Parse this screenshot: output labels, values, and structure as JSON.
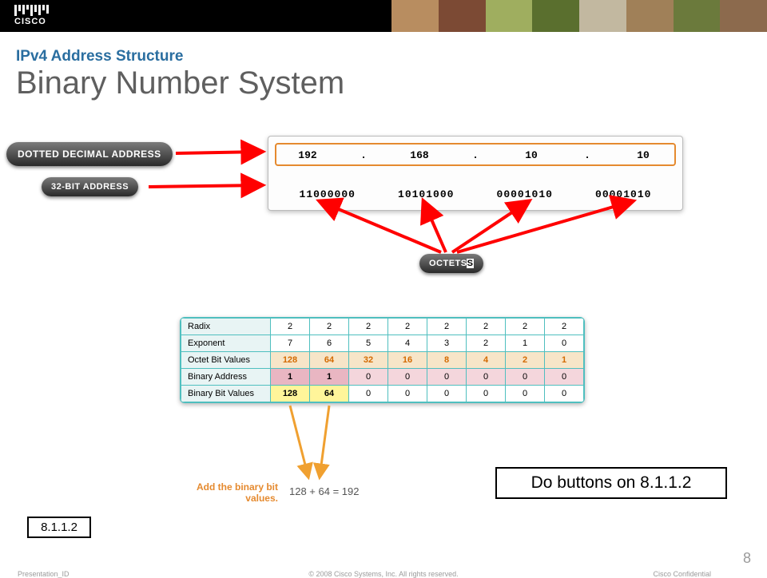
{
  "brand": "CISCO",
  "header": {
    "kicker": "IPv4 Address Structure",
    "title": "Binary Number System",
    "kicker_color": "#2a6ea0",
    "title_color": "#5f5f5f"
  },
  "pills": {
    "dotted": "DOTTED DECIMAL ADDRESS",
    "bit32": "32-BIT ADDRESS",
    "octets": "OCTETS"
  },
  "address": {
    "decimal": [
      "192",
      "168",
      "10",
      "10"
    ],
    "binary": [
      "11000000",
      "10101000",
      "00001010",
      "00001010"
    ],
    "box_border": "#e58a2f"
  },
  "table": {
    "row_labels": [
      "Radix",
      "Exponent",
      "Octet Bit Values",
      "Binary Address",
      "Binary Bit Values"
    ],
    "radix": [
      "2",
      "2",
      "2",
      "2",
      "2",
      "2",
      "2",
      "2"
    ],
    "exponent": [
      "7",
      "6",
      "5",
      "4",
      "3",
      "2",
      "1",
      "0"
    ],
    "obv": [
      "128",
      "64",
      "32",
      "16",
      "8",
      "4",
      "2",
      "1"
    ],
    "ba": [
      "1",
      "1",
      "0",
      "0",
      "0",
      "0",
      "0",
      "0"
    ],
    "bbv": [
      "128",
      "64",
      "0",
      "0",
      "0",
      "0",
      "0",
      "0"
    ]
  },
  "sum": {
    "label": "Add the binary bit\nvalues.",
    "equation": "128 + 64 = 192"
  },
  "callouts": {
    "do_buttons": "Do buttons on 8.1.1.2",
    "ref": "8.1.1.2"
  },
  "footer": {
    "left": "Presentation_ID",
    "center": "© 2008 Cisco Systems, Inc. All rights reserved.",
    "right": "Cisco Confidential",
    "page": "8"
  },
  "photostrip_colors": [
    "#b88d60",
    "#7c4a34",
    "#9fae5f",
    "#5a6f2e",
    "#c2b8a0",
    "#a08058",
    "#6b7a3c",
    "#8c6a4d"
  ],
  "arrows": {
    "color": "#ff0000",
    "sum_color": "#f0a030"
  }
}
